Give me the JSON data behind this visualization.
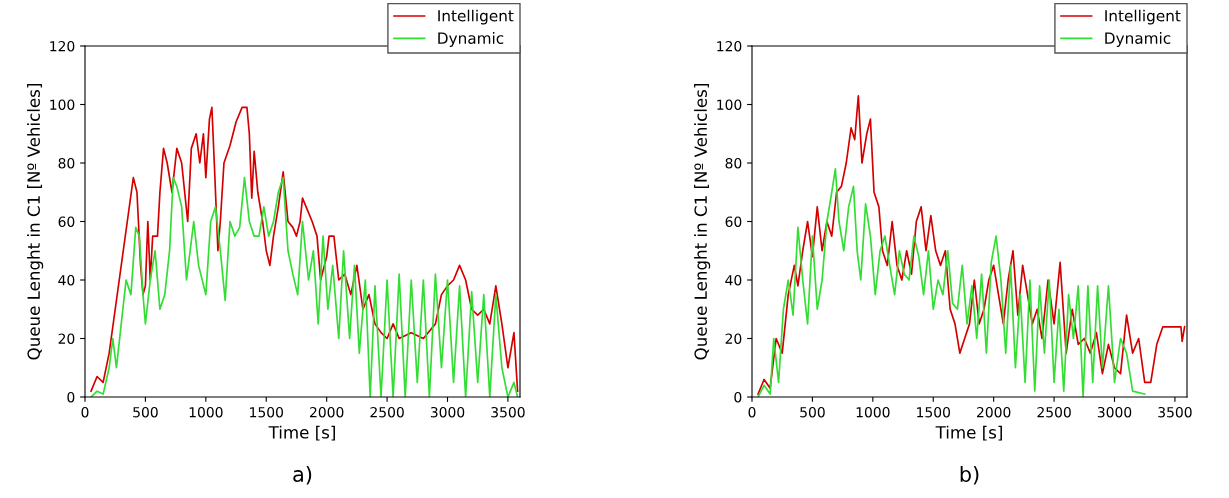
{
  "chart_data": [
    {
      "type": "line",
      "xlabel": "Time [s]",
      "ylabel": "Queue Lenght in C1 [Nº Vehicles]",
      "xlim": [
        0,
        3600
      ],
      "ylim": [
        0,
        120
      ],
      "xticks": [
        0,
        500,
        1000,
        1500,
        2000,
        2500,
        3000,
        3500
      ],
      "yticks": [
        0,
        20,
        40,
        60,
        80,
        100,
        120
      ],
      "grid": false,
      "legend": "top right",
      "annotations": [
        "a)"
      ],
      "series": [
        {
          "name": "Intelligent",
          "color": "#d40000",
          "x": [
            50,
            100,
            150,
            200,
            250,
            300,
            350,
            400,
            430,
            460,
            480,
            500,
            520,
            540,
            560,
            600,
            620,
            650,
            680,
            720,
            760,
            800,
            850,
            880,
            920,
            950,
            980,
            1000,
            1030,
            1050,
            1070,
            1100,
            1120,
            1150,
            1200,
            1250,
            1300,
            1340,
            1360,
            1380,
            1400,
            1430,
            1470,
            1500,
            1530,
            1560,
            1600,
            1640,
            1680,
            1720,
            1750,
            1780,
            1800,
            1830,
            1880,
            1920,
            1950,
            2000,
            2020,
            2060,
            2100,
            2150,
            2200,
            2250,
            2300,
            2350,
            2400,
            2450,
            2500,
            2550,
            2600,
            2700,
            2800,
            2900,
            2950,
            3000,
            3050,
            3100,
            3150,
            3200,
            3250,
            3300,
            3350,
            3400,
            3450,
            3500,
            3550,
            3580
          ],
          "values": [
            2,
            7,
            5,
            15,
            30,
            45,
            60,
            75,
            70,
            45,
            35,
            38,
            60,
            40,
            55,
            55,
            70,
            85,
            80,
            70,
            85,
            80,
            60,
            85,
            90,
            80,
            90,
            75,
            95,
            99,
            80,
            50,
            60,
            80,
            86,
            94,
            99,
            99,
            90,
            68,
            84,
            70,
            60,
            50,
            45,
            55,
            65,
            77,
            60,
            58,
            55,
            60,
            68,
            65,
            60,
            55,
            40,
            48,
            55,
            55,
            40,
            42,
            35,
            45,
            30,
            35,
            25,
            22,
            20,
            25,
            20,
            22,
            20,
            25,
            35,
            38,
            40,
            45,
            40,
            30,
            28,
            30,
            25,
            38,
            25,
            10,
            22,
            2
          ]
        },
        {
          "name": "Dynamic",
          "color": "#33dd33",
          "x": [
            50,
            100,
            150,
            200,
            230,
            260,
            300,
            340,
            380,
            420,
            450,
            480,
            500,
            540,
            580,
            620,
            660,
            700,
            730,
            760,
            800,
            840,
            900,
            940,
            1000,
            1040,
            1080,
            1120,
            1160,
            1200,
            1240,
            1280,
            1320,
            1360,
            1400,
            1440,
            1480,
            1520,
            1560,
            1600,
            1640,
            1680,
            1720,
            1760,
            1800,
            1850,
            1890,
            1930,
            1970,
            2010,
            2050,
            2100,
            2140,
            2190,
            2230,
            2270,
            2320,
            2360,
            2400,
            2450,
            2500,
            2550,
            2600,
            2650,
            2700,
            2750,
            2800,
            2850,
            2900,
            2950,
            3000,
            3050,
            3100,
            3150,
            3200,
            3250,
            3300,
            3350,
            3400,
            3450,
            3500,
            3550,
            3580
          ],
          "values": [
            0,
            2,
            1,
            10,
            20,
            10,
            25,
            40,
            35,
            58,
            55,
            35,
            25,
            40,
            50,
            30,
            35,
            50,
            75,
            72,
            65,
            40,
            60,
            45,
            35,
            60,
            65,
            50,
            33,
            60,
            55,
            58,
            75,
            60,
            55,
            55,
            65,
            55,
            60,
            70,
            75,
            50,
            42,
            35,
            60,
            40,
            50,
            25,
            55,
            30,
            45,
            20,
            50,
            20,
            45,
            15,
            40,
            0,
            38,
            0,
            40,
            0,
            42,
            0,
            40,
            5,
            40,
            0,
            42,
            10,
            40,
            5,
            38,
            0,
            36,
            5,
            35,
            0,
            35,
            10,
            0,
            5,
            0
          ]
        }
      ]
    },
    {
      "type": "line",
      "xlabel": "Time [s]",
      "ylabel": "Queue Lenght in C1 [Nº Vehicles]",
      "xlim": [
        0,
        3600
      ],
      "ylim": [
        0,
        120
      ],
      "xticks": [
        0,
        500,
        1000,
        1500,
        2000,
        2500,
        3000,
        3500
      ],
      "yticks": [
        0,
        20,
        40,
        60,
        80,
        100,
        120
      ],
      "grid": false,
      "legend": "top right",
      "annotations": [
        "b)"
      ],
      "series": [
        {
          "name": "Intelligent",
          "color": "#d40000",
          "x": [
            50,
            100,
            150,
            200,
            250,
            300,
            350,
            380,
            420,
            460,
            500,
            540,
            580,
            620,
            660,
            700,
            740,
            780,
            820,
            850,
            880,
            910,
            950,
            980,
            1010,
            1050,
            1080,
            1120,
            1160,
            1200,
            1240,
            1280,
            1320,
            1360,
            1400,
            1440,
            1480,
            1520,
            1560,
            1600,
            1640,
            1680,
            1720,
            1760,
            1800,
            1840,
            1880,
            1920,
            1960,
            2000,
            2040,
            2080,
            2120,
            2160,
            2200,
            2240,
            2280,
            2320,
            2360,
            2400,
            2450,
            2500,
            2550,
            2600,
            2650,
            2700,
            2750,
            2800,
            2850,
            2900,
            2950,
            3000,
            3050,
            3100,
            3150,
            3200,
            3250,
            3300,
            3350,
            3400,
            3450,
            3550,
            3560,
            3580
          ],
          "values": [
            1,
            6,
            3,
            20,
            15,
            35,
            45,
            38,
            50,
            60,
            48,
            65,
            50,
            60,
            55,
            70,
            72,
            80,
            92,
            88,
            103,
            80,
            90,
            95,
            70,
            65,
            50,
            45,
            60,
            45,
            40,
            50,
            42,
            60,
            65,
            50,
            62,
            50,
            45,
            50,
            30,
            25,
            15,
            20,
            25,
            40,
            25,
            30,
            40,
            45,
            35,
            25,
            40,
            50,
            28,
            45,
            35,
            25,
            30,
            20,
            40,
            25,
            46,
            15,
            30,
            18,
            20,
            15,
            22,
            8,
            18,
            10,
            8,
            28,
            15,
            20,
            5,
            5,
            18,
            24,
            24,
            24,
            19,
            24
          ]
        },
        {
          "name": "Dynamic",
          "color": "#33dd33",
          "x": [
            50,
            100,
            150,
            180,
            220,
            260,
            300,
            340,
            380,
            420,
            460,
            500,
            540,
            580,
            620,
            660,
            690,
            720,
            760,
            800,
            840,
            870,
            900,
            940,
            980,
            1020,
            1060,
            1100,
            1140,
            1180,
            1220,
            1260,
            1300,
            1340,
            1380,
            1420,
            1460,
            1500,
            1540,
            1580,
            1620,
            1660,
            1700,
            1740,
            1780,
            1820,
            1860,
            1900,
            1940,
            1980,
            2020,
            2060,
            2100,
            2140,
            2180,
            2220,
            2260,
            2300,
            2340,
            2380,
            2420,
            2460,
            2500,
            2540,
            2580,
            2620,
            2660,
            2700,
            2740,
            2780,
            2820,
            2860,
            2900,
            2950,
            3000,
            3050,
            3100,
            3150,
            3250
          ],
          "values": [
            0,
            4,
            1,
            20,
            5,
            30,
            40,
            28,
            58,
            40,
            25,
            55,
            30,
            40,
            60,
            70,
            78,
            60,
            50,
            65,
            72,
            50,
            40,
            66,
            55,
            35,
            50,
            55,
            45,
            35,
            50,
            42,
            40,
            55,
            48,
            35,
            50,
            30,
            40,
            35,
            50,
            32,
            30,
            45,
            25,
            38,
            20,
            42,
            15,
            46,
            55,
            40,
            15,
            45,
            10,
            35,
            5,
            40,
            2,
            38,
            15,
            40,
            5,
            30,
            2,
            35,
            20,
            38,
            0,
            38,
            5,
            38,
            10,
            38,
            5,
            20,
            15,
            2,
            1
          ]
        }
      ]
    }
  ]
}
